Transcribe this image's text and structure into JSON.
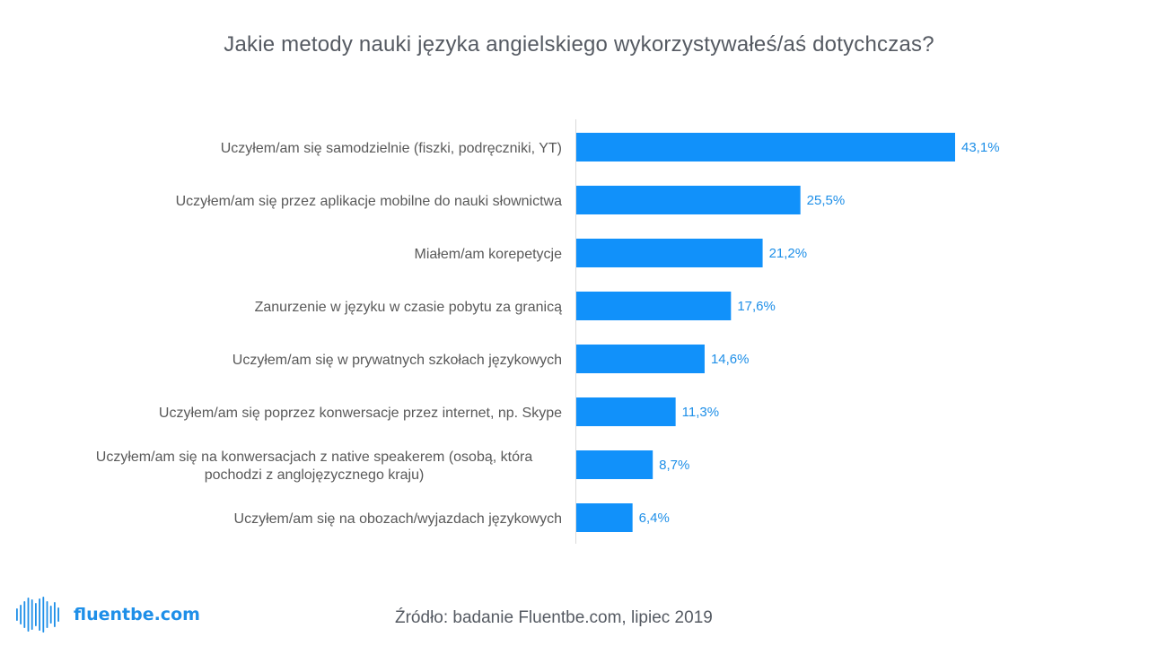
{
  "chart_data": {
    "type": "bar",
    "orientation": "horizontal",
    "title": "Jakie metody nauki języka angielskiego wykorzystywałeś/aś dotychczas?",
    "categories": [
      [
        "Uczyłem/am się samodzielnie (fiszki, podręczniki, YT)"
      ],
      [
        "Uczyłem/am się przez aplikacje mobilne do nauki słownictwa"
      ],
      [
        "Miałem/am korepetycje"
      ],
      [
        "Zanurzenie w języku w czasie pobytu za granicą"
      ],
      [
        "Uczyłem/am się w prywatnych szkołach językowych"
      ],
      [
        "Uczyłem/am się poprzez konwersacje przez internet, np. Skype"
      ],
      [
        "Uczyłem/am się na konwersacjach z native speakerem (osobą, która",
        "pochodzi z anglojęzycznego kraju)"
      ],
      [
        "Uczyłem/am się na obozach/wyjazdach językowych"
      ]
    ],
    "values": [
      43.1,
      25.5,
      21.2,
      17.6,
      14.6,
      11.3,
      8.7,
      6.4
    ],
    "value_labels": [
      "43,1%",
      "25,5%",
      "21,2%",
      "17,6%",
      "14,6%",
      "11,3%",
      "8,7%",
      "6,4%"
    ],
    "xlim": [
      0,
      50
    ],
    "xlabel": "",
    "ylabel": "",
    "grid": false,
    "legend": "none",
    "bar_color": "#1191fa",
    "label_color": "#1e8fe8"
  },
  "brand": {
    "logo_icon": "soundwave-icon",
    "logo_text": "fluentbe.com"
  },
  "source": "Źródło: badanie Fluentbe.com, lipiec 2019"
}
